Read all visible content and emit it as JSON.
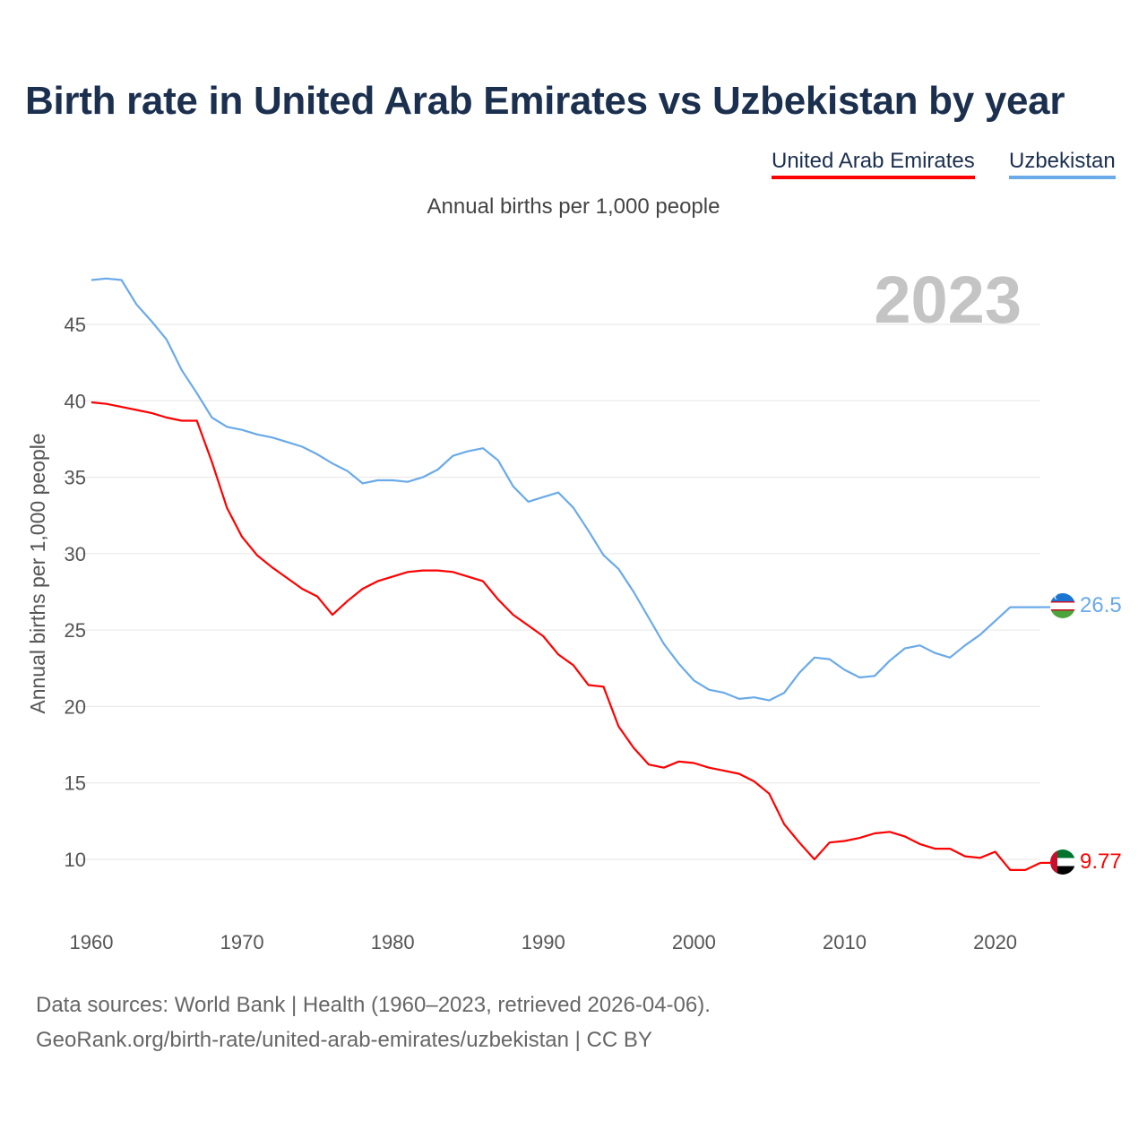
{
  "title": "Birth rate in United Arab Emirates vs Uzbekistan by year",
  "subtitle": "Annual births per 1,000 people",
  "legend": [
    {
      "name": "United Arab Emirates",
      "color": "#ff0000"
    },
    {
      "name": "Uzbekistan",
      "color": "#6aaae8"
    }
  ],
  "year_display": "2023",
  "footer": {
    "line1": "Data sources: World Bank | Health (1960–2023, retrieved 2026-04-06).",
    "line2": "GeoRank.org/birth-rate/united-arab-emirates/uzbekistan | CC BY"
  },
  "chart_data": {
    "type": "line",
    "title": "Birth rate in United Arab Emirates vs Uzbekistan by year",
    "xlabel": "",
    "ylabel": "Annual births per 1,000 people",
    "xlim": [
      1960,
      2023
    ],
    "ylim": [
      7,
      48.5
    ],
    "x_ticks": [
      1960,
      1970,
      1980,
      1990,
      2000,
      2010,
      2020
    ],
    "y_ticks": [
      10,
      15,
      20,
      25,
      30,
      35,
      40,
      45
    ],
    "grid": true,
    "x": [
      1960,
      1961,
      1962,
      1963,
      1964,
      1965,
      1966,
      1967,
      1968,
      1969,
      1970,
      1971,
      1972,
      1973,
      1974,
      1975,
      1976,
      1977,
      1978,
      1979,
      1980,
      1981,
      1982,
      1983,
      1984,
      1985,
      1986,
      1987,
      1988,
      1989,
      1990,
      1991,
      1992,
      1993,
      1994,
      1995,
      1996,
      1997,
      1998,
      1999,
      2000,
      2001,
      2002,
      2003,
      2004,
      2005,
      2006,
      2007,
      2008,
      2009,
      2010,
      2011,
      2012,
      2013,
      2014,
      2015,
      2016,
      2017,
      2018,
      2019,
      2020,
      2021,
      2022,
      2023
    ],
    "series": [
      {
        "name": "United Arab Emirates",
        "color": "#ff0000",
        "end_label": "9.77",
        "values": [
          39.9,
          39.8,
          39.6,
          39.4,
          39.2,
          38.9,
          38.7,
          38.7,
          36.0,
          33.0,
          31.1,
          29.9,
          29.1,
          28.4,
          27.7,
          27.2,
          26.0,
          26.9,
          27.7,
          28.2,
          28.5,
          28.8,
          28.9,
          28.9,
          28.8,
          28.5,
          28.2,
          27.0,
          26.0,
          25.3,
          24.6,
          23.4,
          22.7,
          21.4,
          21.3,
          18.7,
          17.3,
          16.2,
          16.0,
          16.4,
          16.3,
          16.0,
          15.8,
          15.6,
          15.1,
          14.3,
          12.3,
          11.1,
          10.0,
          11.1,
          11.2,
          11.4,
          11.7,
          11.8,
          11.5,
          11.0,
          10.7,
          10.7,
          10.2,
          10.1,
          10.5,
          9.3,
          9.3,
          9.77
        ]
      },
      {
        "name": "Uzbekistan",
        "color": "#6aaae8",
        "end_label": "26.5",
        "values": [
          47.9,
          48.0,
          47.9,
          46.3,
          45.2,
          44.0,
          42.0,
          40.5,
          38.9,
          38.3,
          38.1,
          37.8,
          37.6,
          37.3,
          37.0,
          36.5,
          35.9,
          35.4,
          34.6,
          34.8,
          34.8,
          34.7,
          35.0,
          35.5,
          36.4,
          36.7,
          36.9,
          36.1,
          34.4,
          33.4,
          33.7,
          34.0,
          33.0,
          31.5,
          29.9,
          29.0,
          27.5,
          25.8,
          24.1,
          22.8,
          21.7,
          21.1,
          20.9,
          20.5,
          20.6,
          20.4,
          20.9,
          22.2,
          23.2,
          23.1,
          22.4,
          21.9,
          22.0,
          23.0,
          23.8,
          24.0,
          23.5,
          23.2,
          24.0,
          24.7,
          25.6,
          26.5,
          26.5,
          26.5
        ]
      }
    ]
  }
}
